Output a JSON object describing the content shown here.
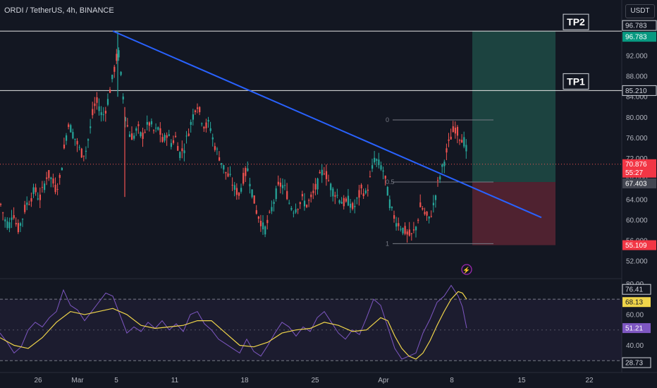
{
  "header": {
    "title": "ORDI / TetherUS, 4h, BINANCE",
    "currency": "USDT"
  },
  "colors": {
    "background": "#131722",
    "up": "#26a69a",
    "down": "#ef5350",
    "trendline": "#2962ff",
    "rsi": "#7e57c2",
    "rsi_ma": "#f0d54a",
    "profit_zone": "#1f4b45",
    "loss_zone": "#5b2532"
  },
  "chart_data": [
    {
      "type": "candlestick",
      "title": "ORDI / TetherUS, 4h, BINANCE",
      "ylim": [
        49,
        99
      ],
      "y_ticks": [
        "52.000",
        "56.000",
        "60.000",
        "64.000",
        "68.000",
        "72.000",
        "76.000",
        "80.000",
        "84.000",
        "88.000",
        "92.000",
        "96.000"
      ],
      "x_ticks": [
        "26",
        "Mar",
        "5",
        "11",
        "18",
        "25",
        "Apr",
        "8",
        "15",
        "22"
      ],
      "close_series": [
        {
          "x": 0,
          "y": 63
        },
        {
          "x": 6,
          "y": 60
        },
        {
          "x": 12,
          "y": 59
        },
        {
          "x": 17,
          "y": 62
        },
        {
          "x": 24,
          "y": 58
        },
        {
          "x": 30,
          "y": 60
        },
        {
          "x": 36,
          "y": 63
        },
        {
          "x": 42,
          "y": 64
        },
        {
          "x": 48,
          "y": 66
        },
        {
          "x": 55,
          "y": 64
        },
        {
          "x": 60,
          "y": 66
        },
        {
          "x": 66,
          "y": 69
        },
        {
          "x": 72,
          "y": 68
        },
        {
          "x": 78,
          "y": 66
        },
        {
          "x": 84,
          "y": 68
        },
        {
          "x": 90,
          "y": 74
        },
        {
          "x": 96,
          "y": 79
        },
        {
          "x": 102,
          "y": 77
        },
        {
          "x": 108,
          "y": 75
        },
        {
          "x": 114,
          "y": 73
        },
        {
          "x": 120,
          "y": 73
        },
        {
          "x": 126,
          "y": 77
        },
        {
          "x": 132,
          "y": 82
        },
        {
          "x": 138,
          "y": 83
        },
        {
          "x": 144,
          "y": 80
        },
        {
          "x": 150,
          "y": 82
        },
        {
          "x": 156,
          "y": 86
        },
        {
          "x": 162,
          "y": 90
        },
        {
          "x": 167,
          "y": 93
        },
        {
          "x": 172,
          "y": 86
        },
        {
          "x": 177,
          "y": 80
        },
        {
          "x": 182,
          "y": 77
        },
        {
          "x": 188,
          "y": 76
        },
        {
          "x": 194,
          "y": 78
        },
        {
          "x": 200,
          "y": 76
        },
        {
          "x": 206,
          "y": 78
        },
        {
          "x": 212,
          "y": 79
        },
        {
          "x": 218,
          "y": 77
        },
        {
          "x": 224,
          "y": 78
        },
        {
          "x": 230,
          "y": 75
        },
        {
          "x": 236,
          "y": 77
        },
        {
          "x": 242,
          "y": 75
        },
        {
          "x": 248,
          "y": 76
        },
        {
          "x": 254,
          "y": 73
        },
        {
          "x": 260,
          "y": 74
        },
        {
          "x": 266,
          "y": 77
        },
        {
          "x": 272,
          "y": 80
        },
        {
          "x": 278,
          "y": 83
        },
        {
          "x": 284,
          "y": 80
        },
        {
          "x": 290,
          "y": 78
        },
        {
          "x": 296,
          "y": 79
        },
        {
          "x": 302,
          "y": 75
        },
        {
          "x": 308,
          "y": 73
        },
        {
          "x": 314,
          "y": 71
        },
        {
          "x": 320,
          "y": 69
        },
        {
          "x": 326,
          "y": 68
        },
        {
          "x": 332,
          "y": 66
        },
        {
          "x": 338,
          "y": 65
        },
        {
          "x": 344,
          "y": 68
        },
        {
          "x": 350,
          "y": 70
        },
        {
          "x": 356,
          "y": 66
        },
        {
          "x": 362,
          "y": 62
        },
        {
          "x": 368,
          "y": 60
        },
        {
          "x": 374,
          "y": 58
        },
        {
          "x": 380,
          "y": 60
        },
        {
          "x": 386,
          "y": 63
        },
        {
          "x": 392,
          "y": 66
        },
        {
          "x": 398,
          "y": 67
        },
        {
          "x": 404,
          "y": 66
        },
        {
          "x": 410,
          "y": 63
        },
        {
          "x": 416,
          "y": 62
        },
        {
          "x": 422,
          "y": 63
        },
        {
          "x": 428,
          "y": 64
        },
        {
          "x": 434,
          "y": 63
        },
        {
          "x": 440,
          "y": 64
        },
        {
          "x": 446,
          "y": 66
        },
        {
          "x": 452,
          "y": 68
        },
        {
          "x": 458,
          "y": 70
        },
        {
          "x": 464,
          "y": 68
        },
        {
          "x": 470,
          "y": 66
        },
        {
          "x": 476,
          "y": 65
        },
        {
          "x": 482,
          "y": 64
        },
        {
          "x": 488,
          "y": 63
        },
        {
          "x": 494,
          "y": 64
        },
        {
          "x": 500,
          "y": 62
        },
        {
          "x": 506,
          "y": 64
        },
        {
          "x": 512,
          "y": 66
        },
        {
          "x": 518,
          "y": 65
        },
        {
          "x": 524,
          "y": 68
        },
        {
          "x": 530,
          "y": 72
        },
        {
          "x": 536,
          "y": 71
        },
        {
          "x": 542,
          "y": 70
        },
        {
          "x": 548,
          "y": 66
        },
        {
          "x": 554,
          "y": 62
        },
        {
          "x": 560,
          "y": 60
        },
        {
          "x": 566,
          "y": 59
        },
        {
          "x": 572,
          "y": 58
        },
        {
          "x": 578,
          "y": 57
        },
        {
          "x": 584,
          "y": 57
        },
        {
          "x": 590,
          "y": 59
        },
        {
          "x": 596,
          "y": 63
        },
        {
          "x": 602,
          "y": 61
        },
        {
          "x": 608,
          "y": 60
        },
        {
          "x": 614,
          "y": 63
        },
        {
          "x": 620,
          "y": 67
        },
        {
          "x": 626,
          "y": 70
        },
        {
          "x": 632,
          "y": 73
        },
        {
          "x": 638,
          "y": 76
        },
        {
          "x": 644,
          "y": 78
        },
        {
          "x": 648,
          "y": 77
        },
        {
          "x": 652,
          "y": 76
        },
        {
          "x": 656,
          "y": 76
        },
        {
          "x": 660,
          "y": 74
        },
        {
          "x": 663,
          "y": 71
        }
      ],
      "horizontal_levels": [
        {
          "label": "TP2",
          "value": 96.783
        },
        {
          "label": "TP1",
          "value": 85.21
        }
      ],
      "current_price": 70.876,
      "price_labels": [
        "96.783",
        "96.783",
        "85.210",
        "70.876",
        "55:27",
        "67.403",
        "55.109"
      ],
      "trendline": [
        {
          "x": 160,
          "y": 96.8
        },
        {
          "x": 768,
          "y": 60.5
        }
      ],
      "fibonacci": {
        "levels": [
          {
            "label": "0",
            "value": 79.5
          },
          {
            "label": "0.5",
            "value": 67.4
          },
          {
            "label": "1",
            "value": 55.4
          }
        ]
      },
      "position": {
        "entry": 67.403,
        "target": 96.783,
        "stop": 55.109
      }
    },
    {
      "type": "line",
      "title": "",
      "ylim": [
        26,
        82
      ],
      "y_ticks": [
        "40.00",
        "60.00",
        "80.00"
      ],
      "bands": [
        30,
        70
      ],
      "series": [
        {
          "values": [
            {
              "x": 0,
              "y": 48
            },
            {
              "x": 10,
              "y": 42
            },
            {
              "x": 20,
              "y": 35
            },
            {
              "x": 30,
              "y": 39
            },
            {
              "x": 40,
              "y": 50
            },
            {
              "x": 50,
              "y": 55
            },
            {
              "x": 60,
              "y": 52
            },
            {
              "x": 70,
              "y": 58
            },
            {
              "x": 80,
              "y": 62
            },
            {
              "x": 90,
              "y": 76
            },
            {
              "x": 100,
              "y": 66
            },
            {
              "x": 110,
              "y": 63
            },
            {
              "x": 120,
              "y": 56
            },
            {
              "x": 130,
              "y": 62
            },
            {
              "x": 140,
              "y": 68
            },
            {
              "x": 150,
              "y": 74
            },
            {
              "x": 160,
              "y": 72
            },
            {
              "x": 170,
              "y": 60
            },
            {
              "x": 180,
              "y": 48
            },
            {
              "x": 190,
              "y": 52
            },
            {
              "x": 200,
              "y": 49
            },
            {
              "x": 210,
              "y": 55
            },
            {
              "x": 220,
              "y": 51
            },
            {
              "x": 230,
              "y": 56
            },
            {
              "x": 240,
              "y": 50
            },
            {
              "x": 250,
              "y": 54
            },
            {
              "x": 260,
              "y": 49
            },
            {
              "x": 270,
              "y": 60
            },
            {
              "x": 280,
              "y": 62
            },
            {
              "x": 290,
              "y": 54
            },
            {
              "x": 300,
              "y": 50
            },
            {
              "x": 310,
              "y": 44
            },
            {
              "x": 320,
              "y": 41
            },
            {
              "x": 330,
              "y": 38
            },
            {
              "x": 340,
              "y": 35
            },
            {
              "x": 350,
              "y": 44
            },
            {
              "x": 360,
              "y": 36
            },
            {
              "x": 370,
              "y": 33
            },
            {
              "x": 380,
              "y": 40
            },
            {
              "x": 390,
              "y": 48
            },
            {
              "x": 400,
              "y": 55
            },
            {
              "x": 410,
              "y": 52
            },
            {
              "x": 420,
              "y": 46
            },
            {
              "x": 430,
              "y": 52
            },
            {
              "x": 440,
              "y": 49
            },
            {
              "x": 450,
              "y": 58
            },
            {
              "x": 460,
              "y": 62
            },
            {
              "x": 470,
              "y": 55
            },
            {
              "x": 480,
              "y": 48
            },
            {
              "x": 490,
              "y": 44
            },
            {
              "x": 500,
              "y": 50
            },
            {
              "x": 510,
              "y": 47
            },
            {
              "x": 520,
              "y": 58
            },
            {
              "x": 530,
              "y": 70
            },
            {
              "x": 540,
              "y": 66
            },
            {
              "x": 550,
              "y": 52
            },
            {
              "x": 560,
              "y": 38
            },
            {
              "x": 570,
              "y": 31
            },
            {
              "x": 580,
              "y": 33
            },
            {
              "x": 590,
              "y": 35
            },
            {
              "x": 600,
              "y": 48
            },
            {
              "x": 610,
              "y": 57
            },
            {
              "x": 620,
              "y": 68
            },
            {
              "x": 630,
              "y": 72
            },
            {
              "x": 640,
              "y": 79
            },
            {
              "x": 650,
              "y": 72
            },
            {
              "x": 656,
              "y": 65
            },
            {
              "x": 662,
              "y": 51.2
            }
          ]
        },
        {
          "values": [
            {
              "x": 0,
              "y": 45
            },
            {
              "x": 20,
              "y": 40
            },
            {
              "x": 40,
              "y": 38
            },
            {
              "x": 60,
              "y": 45
            },
            {
              "x": 80,
              "y": 55
            },
            {
              "x": 100,
              "y": 62
            },
            {
              "x": 120,
              "y": 60
            },
            {
              "x": 140,
              "y": 62
            },
            {
              "x": 160,
              "y": 64
            },
            {
              "x": 180,
              "y": 60
            },
            {
              "x": 200,
              "y": 53
            },
            {
              "x": 220,
              "y": 51
            },
            {
              "x": 240,
              "y": 52
            },
            {
              "x": 260,
              "y": 53
            },
            {
              "x": 280,
              "y": 56
            },
            {
              "x": 300,
              "y": 56
            },
            {
              "x": 320,
              "y": 48
            },
            {
              "x": 340,
              "y": 40
            },
            {
              "x": 360,
              "y": 39
            },
            {
              "x": 380,
              "y": 42
            },
            {
              "x": 400,
              "y": 48
            },
            {
              "x": 420,
              "y": 50
            },
            {
              "x": 440,
              "y": 51
            },
            {
              "x": 460,
              "y": 55
            },
            {
              "x": 480,
              "y": 53
            },
            {
              "x": 500,
              "y": 49
            },
            {
              "x": 520,
              "y": 50
            },
            {
              "x": 540,
              "y": 58
            },
            {
              "x": 550,
              "y": 56
            },
            {
              "x": 560,
              "y": 46
            },
            {
              "x": 570,
              "y": 38
            },
            {
              "x": 580,
              "y": 33
            },
            {
              "x": 590,
              "y": 31
            },
            {
              "x": 600,
              "y": 35
            },
            {
              "x": 610,
              "y": 43
            },
            {
              "x": 620,
              "y": 53
            },
            {
              "x": 630,
              "y": 62
            },
            {
              "x": 640,
              "y": 70
            },
            {
              "x": 650,
              "y": 75
            },
            {
              "x": 656,
              "y": 74
            },
            {
              "x": 662,
              "y": 70
            }
          ]
        }
      ],
      "price_labels": [
        "76.41",
        "68.13",
        "51.21",
        "28.73"
      ]
    }
  ]
}
